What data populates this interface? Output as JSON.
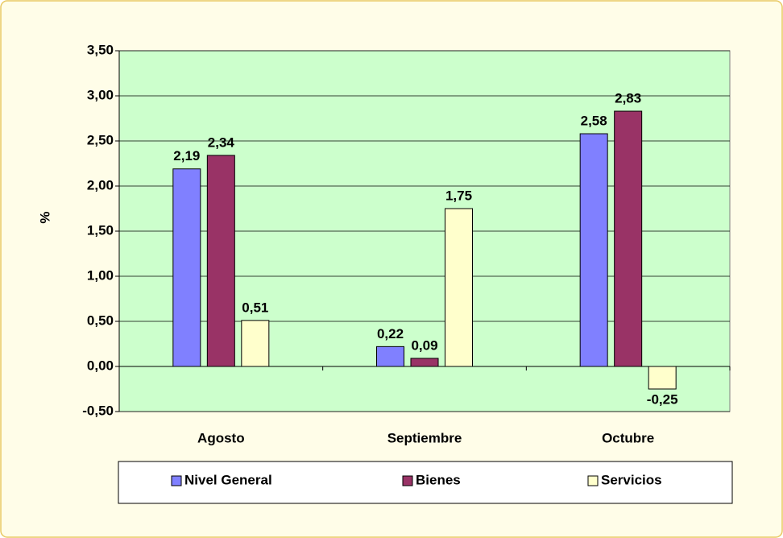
{
  "chart_data": {
    "type": "bar",
    "y_label": "%",
    "categories": [
      "Agosto",
      "Septiembre",
      "Octubre"
    ],
    "series": [
      {
        "name": "Nivel General",
        "color": "#8080ff",
        "values": [
          2.19,
          0.22,
          2.58
        ],
        "value_labels": [
          "2,19",
          "0,22",
          "2,58"
        ]
      },
      {
        "name": "Bienes",
        "color": "#993366",
        "values": [
          2.34,
          0.09,
          2.83
        ],
        "value_labels": [
          "2,34",
          "0,09",
          "2,83"
        ]
      },
      {
        "name": "Servicios",
        "color": "#ffffcc",
        "values": [
          0.51,
          1.75,
          -0.25
        ],
        "value_labels": [
          "0,51",
          "1,75",
          "-0,25"
        ]
      }
    ],
    "ylim": [
      -0.5,
      3.5
    ],
    "yticks": [
      {
        "value": -0.5,
        "label": "-0,50"
      },
      {
        "value": 0,
        "label": "0,00"
      },
      {
        "value": 0.5,
        "label": "0,50"
      },
      {
        "value": 1,
        "label": "1,00"
      },
      {
        "value": 1.5,
        "label": "1,50"
      },
      {
        "value": 2,
        "label": "2,00"
      },
      {
        "value": 2.5,
        "label": "2,50"
      },
      {
        "value": 3,
        "label": "3,00"
      },
      {
        "value": 3.5,
        "label": "3,50"
      }
    ],
    "grid": true,
    "plot_background": "#ccffcc",
    "legend": "bottom"
  }
}
